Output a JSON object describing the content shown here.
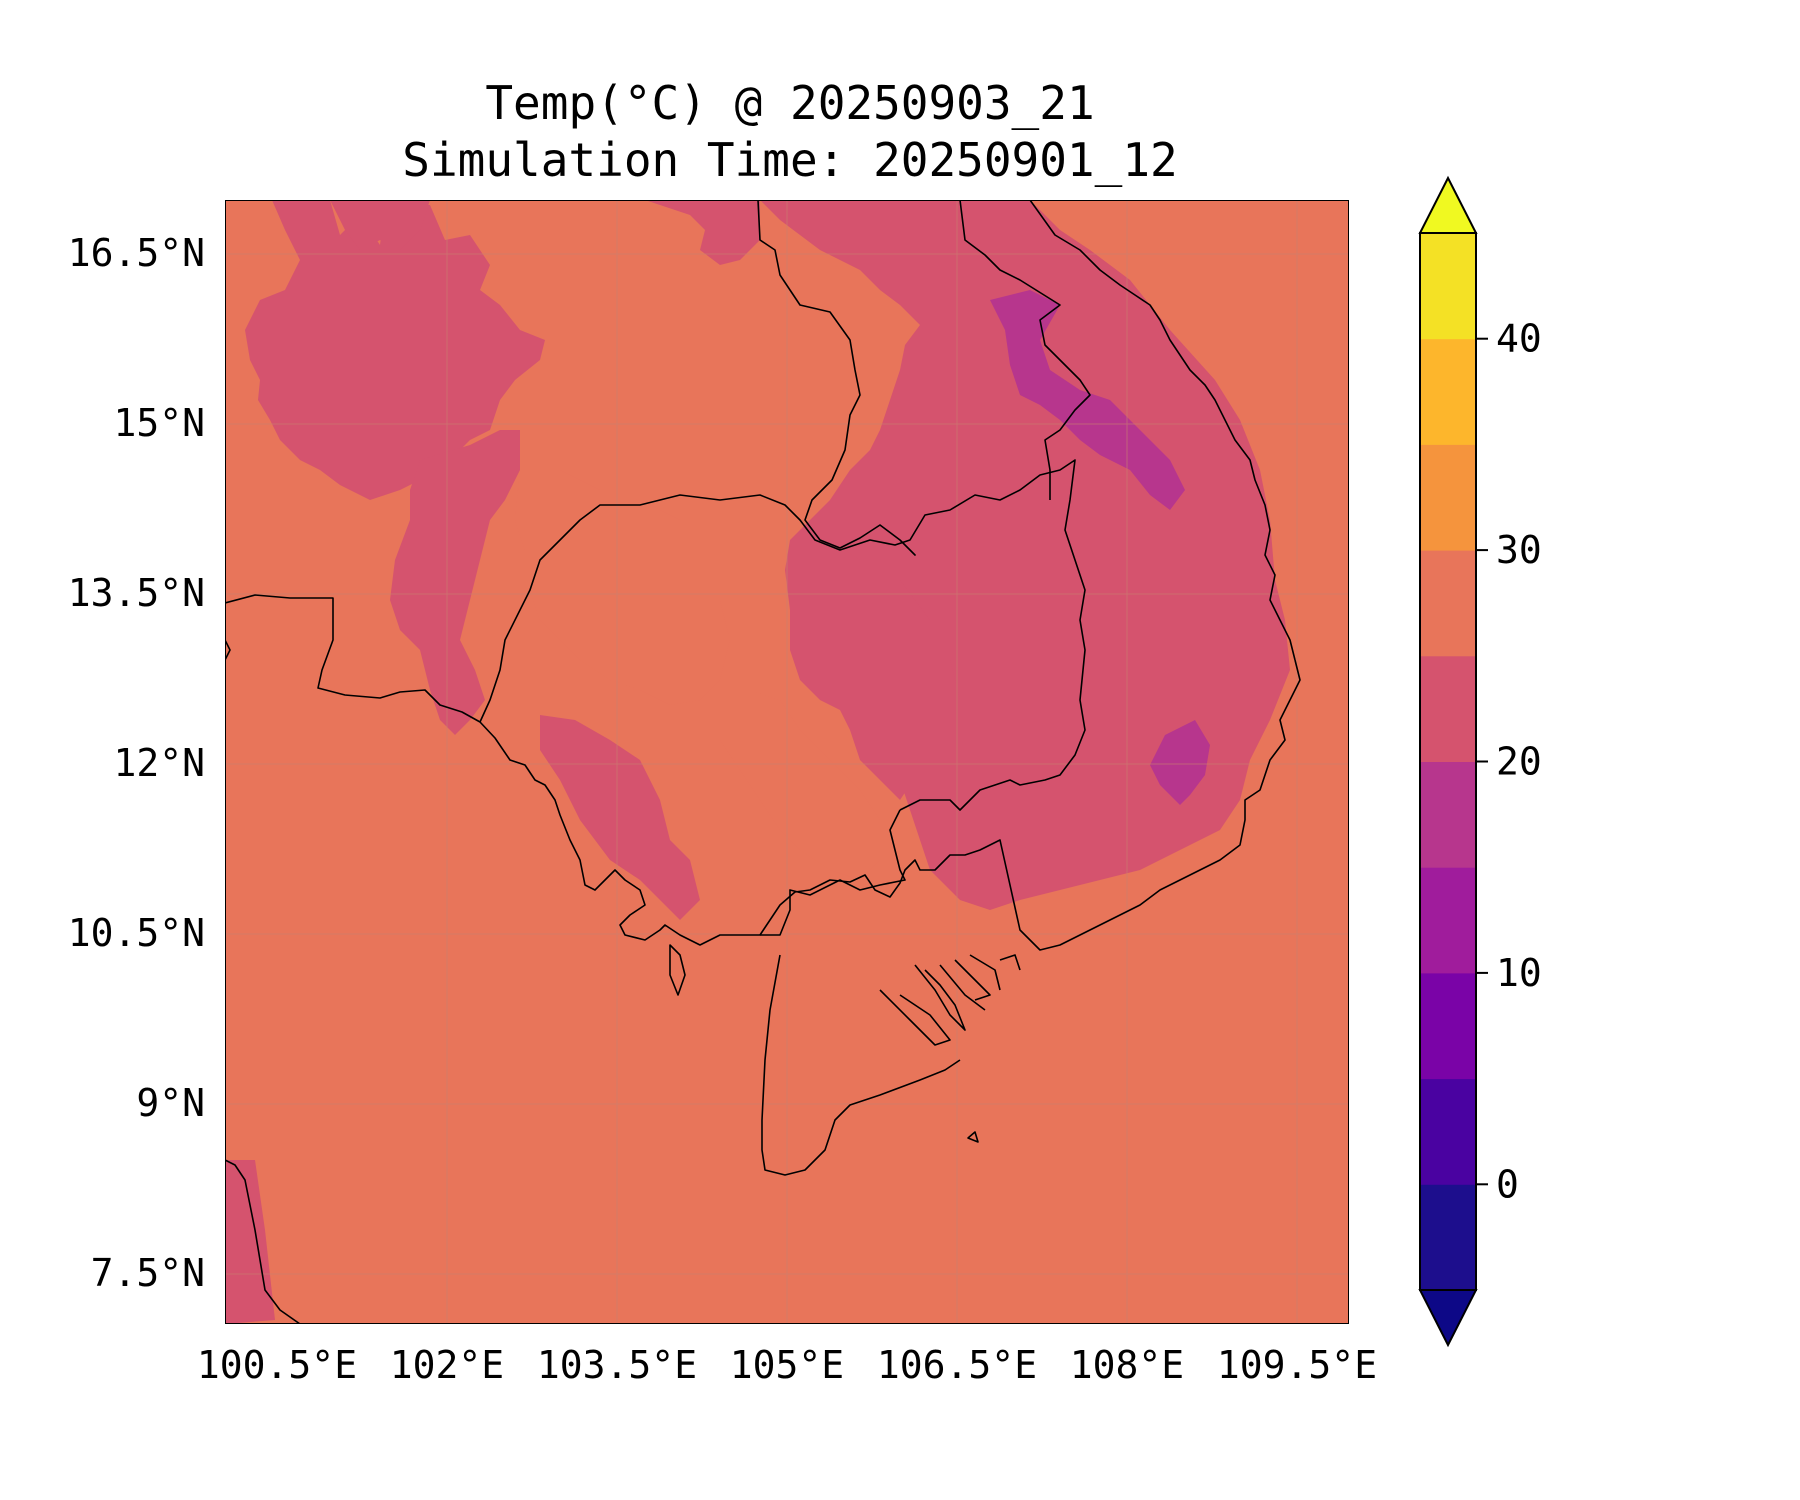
{
  "title": "Temp(°C) @ 20250903_21",
  "subtitle": "Simulation Time: 20250901_12",
  "map": {
    "lon_ticks": [
      "100.5°E",
      "102°E",
      "103.5°E",
      "105°E",
      "106.5°E",
      "108°E",
      "109.5°E"
    ],
    "lat_ticks": [
      "16.5°N",
      "15°N",
      "13.5°N",
      "12°N",
      "10.5°N",
      "9°N",
      "7.5°N"
    ],
    "lon_range": [
      100.5,
      110.4
    ],
    "lat_range": [
      7.1,
      17.0
    ],
    "colors": {
      "range_25_30": "#e8755a",
      "range_20_25": "#d5536e",
      "range_15_20": "#b7368d",
      "coastline": "#000000"
    }
  },
  "colorbar": {
    "ticks": [
      "0",
      "10",
      "20",
      "30",
      "40"
    ],
    "levels": [
      -5,
      0,
      5,
      10,
      15,
      20,
      25,
      30,
      35,
      40,
      45
    ],
    "colors": [
      "#1d0e8d",
      "#4a02a1",
      "#7a03a7",
      "#a01c9c",
      "#b7368d",
      "#d5536e",
      "#e8755a",
      "#f5943d",
      "#fdb62c",
      "#f4e125"
    ],
    "under_color": "#0d0887",
    "over_color": "#f0f921",
    "extend": "both"
  }
}
